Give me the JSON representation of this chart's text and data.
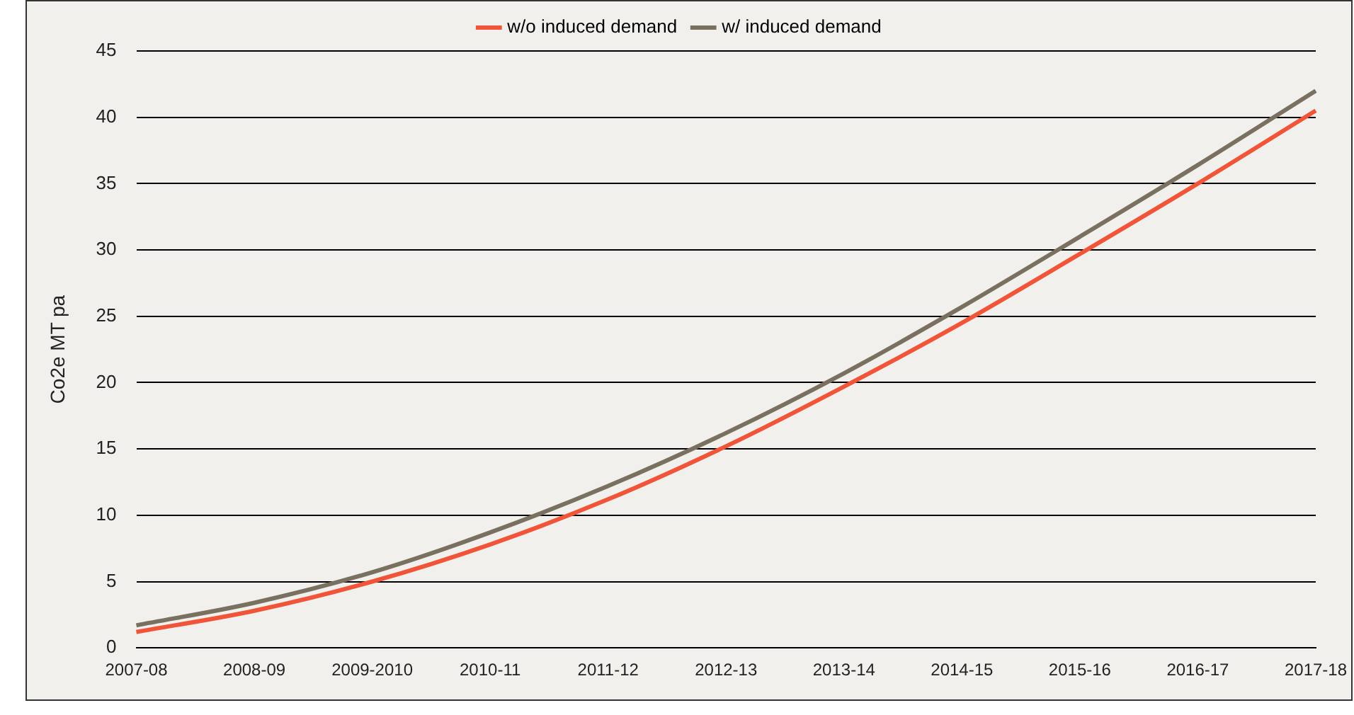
{
  "chart_data": {
    "type": "line",
    "ylabel": "Co2e MT pa",
    "categories": [
      "2007-08",
      "2008-09",
      "2009-2010",
      "2010-11",
      "2011-12",
      "2012-13",
      "2013-14",
      "2014-15",
      "2015-16",
      "2016-17",
      "2017-18"
    ],
    "series": [
      {
        "name": "w/o induced demand",
        "color": "#f0553a",
        "values": [
          1.2,
          2.8,
          5,
          7.8,
          11.2,
          15.2,
          19.7,
          24.5,
          29.7,
          35,
          40.5
        ]
      },
      {
        "name": "w/ induced demand",
        "color": "#7a7060",
        "values": [
          1.7,
          3.4,
          5.7,
          8.7,
          12.2,
          16.2,
          20.7,
          25.7,
          31,
          36.4,
          42
        ]
      }
    ],
    "ylim": [
      0,
      45
    ],
    "yticks": [
      0,
      5,
      10,
      15,
      20,
      25,
      30,
      35,
      40,
      45
    ],
    "grid": "y",
    "legend": "top",
    "marker": "none",
    "line_style": "solid"
  }
}
